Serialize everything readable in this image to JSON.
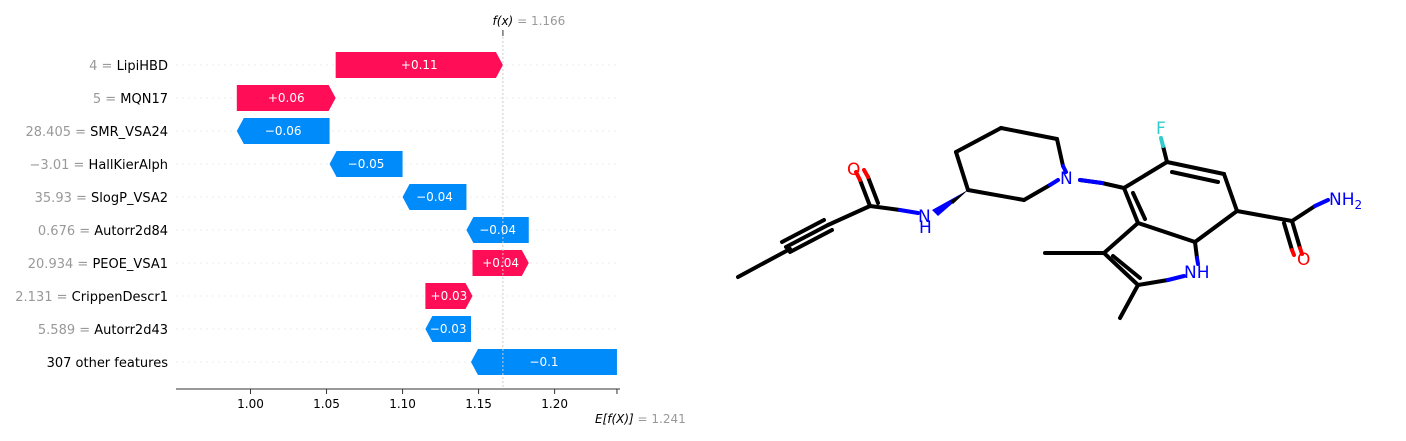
{
  "chart_data": {
    "type": "waterfall",
    "fx_label": "f(x)",
    "fx_value": "1.166",
    "fx_numeric": 1.166,
    "base_label": "E[f(X)]",
    "base_value": "1.241",
    "base_numeric": 1.241,
    "xlim": [
      0.951,
      1.243
    ],
    "xticks": [
      1.0,
      1.05,
      1.1,
      1.15,
      1.2
    ],
    "xtick_labels": [
      "1.00",
      "1.05",
      "1.10",
      "1.15",
      "1.20"
    ],
    "features": [
      {
        "value": "4",
        "name": "LipiHBD",
        "start": 1.056,
        "end": 1.166,
        "label": "+0.11",
        "sign": "positive"
      },
      {
        "value": "5",
        "name": "MQN17",
        "start": 0.991,
        "end": 1.056,
        "label": "+0.06",
        "sign": "positive"
      },
      {
        "value": "28.405",
        "name": "SMR_VSA24",
        "start": 1.052,
        "end": 0.991,
        "label": "−0.06",
        "sign": "negative"
      },
      {
        "value": "−3.01",
        "name": "HallKierAlph",
        "start": 1.1,
        "end": 1.052,
        "label": "−0.05",
        "sign": "negative"
      },
      {
        "value": "35.93",
        "name": "SlogP_VSA2",
        "start": 1.142,
        "end": 1.1,
        "label": "−0.04",
        "sign": "negative"
      },
      {
        "value": "0.676",
        "name": "Autorr2d84",
        "start": 1.183,
        "end": 1.142,
        "label": "−0.04",
        "sign": "negative"
      },
      {
        "value": "20.934",
        "name": "PEOE_VSA1",
        "start": 1.146,
        "end": 1.183,
        "label": "+0.04",
        "sign": "positive"
      },
      {
        "value": "2.131",
        "name": "CrippenDescr1",
        "start": 1.115,
        "end": 1.146,
        "label": "+0.03",
        "sign": "positive"
      },
      {
        "value": "5.589",
        "name": "Autorr2d43",
        "start": 1.145,
        "end": 1.115,
        "label": "−0.03",
        "sign": "negative"
      },
      {
        "value": "",
        "name": "307 other features",
        "start": 1.241,
        "end": 1.145,
        "label": "−0.1",
        "sign": "negative"
      }
    ],
    "colors": {
      "positive": "#ff0d57",
      "negative": "#008bfb"
    }
  },
  "molecule": {
    "atoms": {
      "fluorine": "F",
      "nitrogen_piperidine": "N",
      "amide_nh": "N",
      "amide_h": "H",
      "oxygen_left": "O",
      "oxygen_right": "O",
      "nh2": "NH",
      "nh2_sub": "2",
      "indole_nh": "NH"
    },
    "colors": {
      "carbon": "#000000",
      "nitrogen": "#0000ff",
      "oxygen": "#ff0000",
      "fluorine": "#33cccc"
    }
  }
}
